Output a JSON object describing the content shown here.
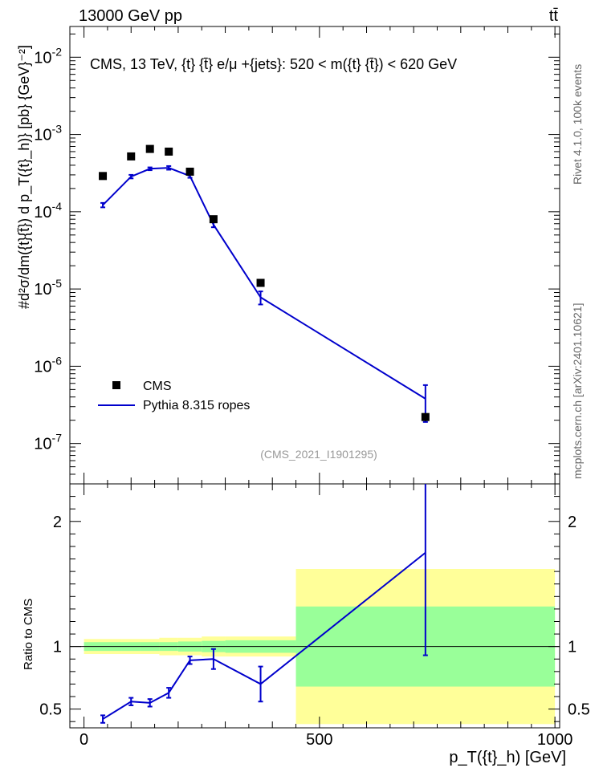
{
  "header": {
    "left": "13000 GeV pp",
    "right": "t̅t̅",
    "right_plain": "tt̄"
  },
  "side_labels": {
    "rivet": "Rivet 4.1.0,  100k events",
    "mcplots": "mcplots.cern.ch [arXiv:2401.10621]"
  },
  "chart_data": {
    "type": "scatter",
    "title": "CMS, 13 TeV, {t} {t̄} e/μ +{jets}: 520 < m({t} {t̄}) < 620 GeV",
    "analysis_tag": "(CMS_2021_I1901295)",
    "xlabel": "p_T({t}_h) [GeV]",
    "ylabel_main": "#d²σ/dm({t}{t̄}) d p_T({t}_h)} [pb} {GeV}⁻²]",
    "ylabel_ratio": "Ratio to CMS",
    "xlim": [
      -30,
      1010
    ],
    "ylim_log": [
      3e-08,
      0.025
    ],
    "ratio_ylim": [
      0.35,
      2.3
    ],
    "x_ticks": [
      "0",
      "500",
      "1000"
    ],
    "y_ticks_main": [
      "10^-7",
      "10^-6",
      "10^-5",
      "10^-4",
      "10^-3",
      "10^-2"
    ],
    "y_ticks_ratio": [
      "0.5",
      "1",
      "2"
    ],
    "legend": {
      "data_label": "CMS",
      "mc_label": "Pythia 8.315 ropes",
      "position": "bottom-left"
    },
    "bins": [
      {
        "lo": 0,
        "hi": 80,
        "x": 40,
        "data": 0.00029,
        "mc": 0.000122,
        "mc_err": 8e-06,
        "ratio": 0.42,
        "ratio_err": 0.03,
        "stat": 0.035,
        "total": 0.06
      },
      {
        "lo": 80,
        "hi": 120,
        "x": 100,
        "data": 0.00052,
        "mc": 0.000285,
        "mc_err": 1.5e-05,
        "ratio": 0.56,
        "ratio_err": 0.03,
        "stat": 0.035,
        "total": 0.06
      },
      {
        "lo": 120,
        "hi": 160,
        "x": 140,
        "data": 0.00065,
        "mc": 0.00036,
        "mc_err": 1.5e-05,
        "ratio": 0.55,
        "ratio_err": 0.03,
        "stat": 0.035,
        "total": 0.06
      },
      {
        "lo": 160,
        "hi": 200,
        "x": 180,
        "data": 0.0006,
        "mc": 0.00037,
        "mc_err": 2e-05,
        "ratio": 0.63,
        "ratio_err": 0.04,
        "stat": 0.035,
        "total": 0.07
      },
      {
        "lo": 200,
        "hi": 250,
        "x": 225,
        "data": 0.00033,
        "mc": 0.00029,
        "mc_err": 1.5e-05,
        "ratio": 0.89,
        "ratio_err": 0.03,
        "stat": 0.04,
        "total": 0.07
      },
      {
        "lo": 250,
        "hi": 300,
        "x": 275,
        "data": 8e-05,
        "mc": 6.8e-05,
        "mc_err": 5e-06,
        "ratio": 0.9,
        "ratio_err": 0.08,
        "stat": 0.045,
        "total": 0.08
      },
      {
        "lo": 300,
        "hi": 450,
        "x": 375,
        "data": 1.2e-05,
        "mc": 7.8e-06,
        "mc_err": 1.5e-06,
        "ratio": 0.7,
        "ratio_err": 0.14,
        "stat": 0.05,
        "total": 0.08
      },
      {
        "lo": 450,
        "hi": 1000,
        "x": 725,
        "data": 2.2e-07,
        "mc": 3.8e-07,
        "mc_err": 1.9e-07,
        "ratio": 1.75,
        "ratio_err": 0.82,
        "stat": 0.32,
        "total": 0.62
      }
    ],
    "colors": {
      "mc": "#0000cc",
      "stat_band": "#99ff99",
      "total_band": "#ffff99",
      "data": "#000000"
    }
  }
}
